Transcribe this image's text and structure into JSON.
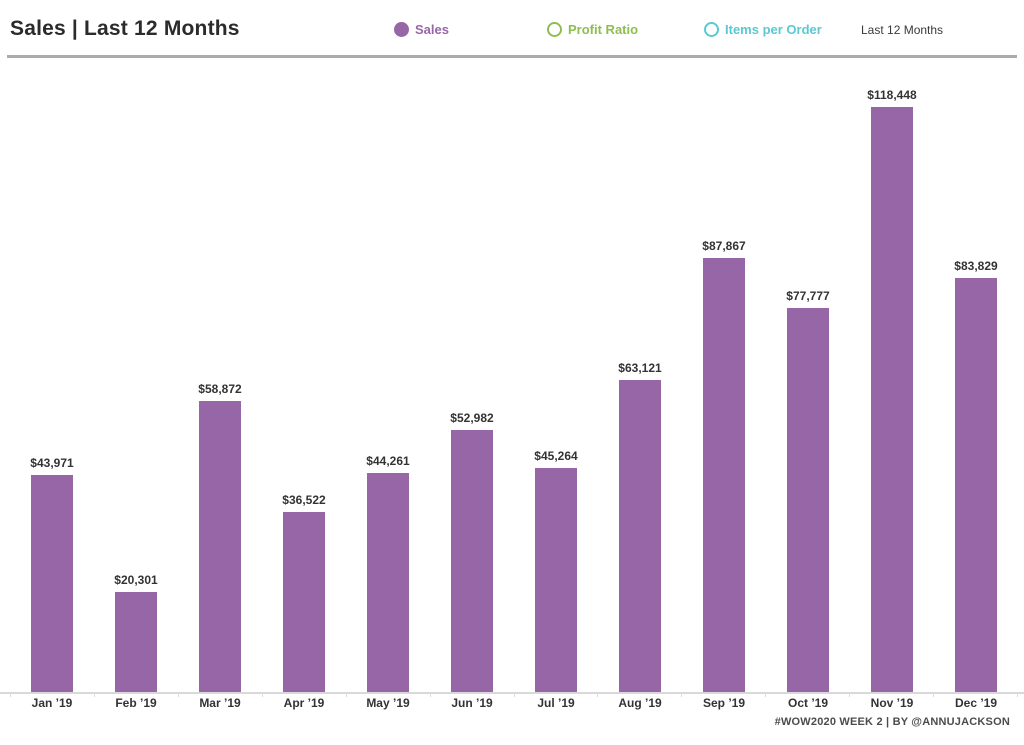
{
  "header": {
    "title": "Sales | Last 12 Months",
    "legend": [
      {
        "label": "Sales",
        "color": "#9766a6",
        "filled": true
      },
      {
        "label": "Profit Ratio",
        "color": "#8cbf4f",
        "filled": false
      },
      {
        "label": "Items per Order",
        "color": "#5bc8d2",
        "filled": false
      }
    ],
    "range_label": "Last 12 Months"
  },
  "chart_data": {
    "type": "bar",
    "title": "Sales | Last 12 Months",
    "series_name": "Sales",
    "categories": [
      "Jan ’19",
      "Feb ’19",
      "Mar ’19",
      "Apr ’19",
      "May ’19",
      "Jun ’19",
      "Jul ’19",
      "Aug ’19",
      "Sep ’19",
      "Oct ’19",
      "Nov ’19",
      "Dec ’19"
    ],
    "values": [
      43971,
      20301,
      58872,
      36522,
      44261,
      52982,
      45264,
      63121,
      87867,
      77777,
      118448,
      83829
    ],
    "value_labels": [
      "$43,971",
      "$20,301",
      "$58,872",
      "$36,522",
      "$44,261",
      "$52,982",
      "$45,264",
      "$63,121",
      "$87,867",
      "$77,777",
      "$118,448",
      "$83,829"
    ],
    "bar_color": "#9766a6",
    "xlabel": "",
    "ylabel": "Sales",
    "ylim": [
      0,
      118448
    ],
    "grid": false,
    "legend_position": "top",
    "data_labels": true
  },
  "footer": {
    "credit": "#WOW2020 WEEK 2 | BY @ANNUJACKSON"
  }
}
